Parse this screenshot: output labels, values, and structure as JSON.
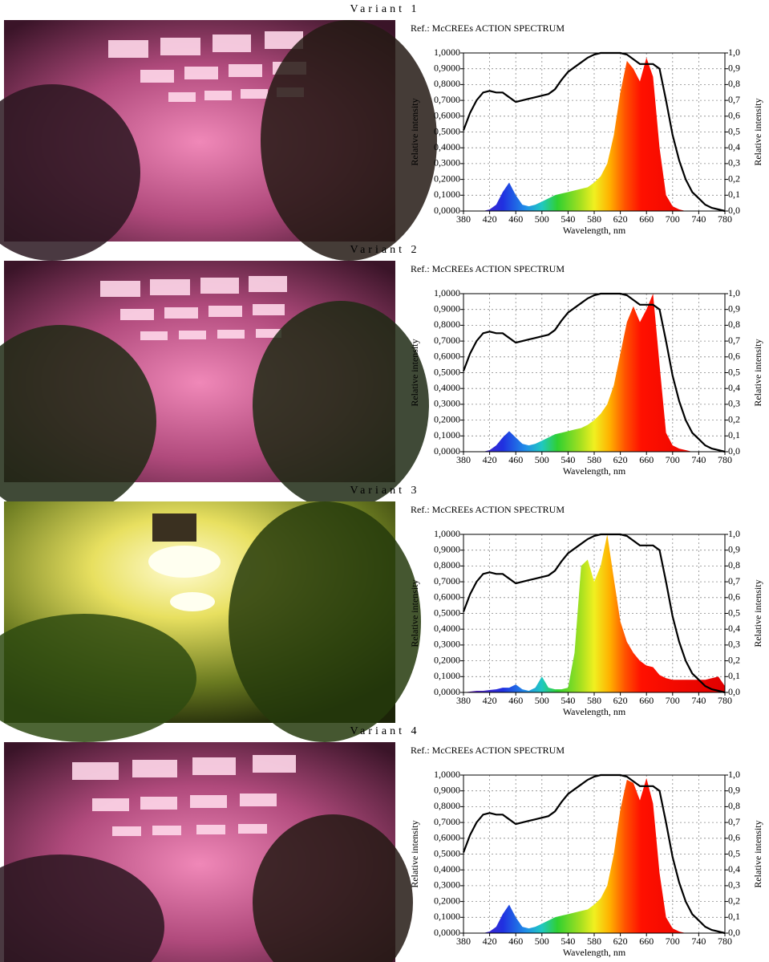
{
  "chart_data": [
    {
      "type": "area",
      "title": "Variant 1",
      "subtitle": "Ref.: McCREEs ACTION SPECTRUM",
      "x_label": "Wavelength, nm",
      "y_label": "Relative intensity",
      "y2_label": "Relative intensity",
      "x": [
        380,
        390,
        400,
        410,
        420,
        430,
        440,
        450,
        460,
        470,
        480,
        490,
        500,
        510,
        520,
        530,
        540,
        550,
        560,
        570,
        580,
        590,
        600,
        610,
        620,
        630,
        640,
        650,
        660,
        670,
        680,
        690,
        700,
        710,
        720,
        730,
        740,
        750,
        760,
        770,
        780
      ],
      "series": [
        {
          "values": [
            0,
            0,
            0,
            0,
            0.01,
            0.04,
            0.12,
            0.18,
            0.1,
            0.04,
            0.03,
            0.04,
            0.06,
            0.08,
            0.1,
            0.11,
            0.12,
            0.13,
            0.14,
            0.15,
            0.18,
            0.22,
            0.3,
            0.48,
            0.75,
            0.95,
            0.9,
            0.82,
            0.97,
            0.85,
            0.4,
            0.1,
            0.03,
            0.01,
            0,
            0,
            0,
            0,
            0,
            0,
            0
          ]
        },
        {
          "color": "#000000",
          "axis": "y2",
          "values": [
            0.51,
            0.62,
            0.7,
            0.75,
            0.76,
            0.75,
            0.75,
            0.72,
            0.69,
            0.7,
            0.71,
            0.72,
            0.73,
            0.74,
            0.77,
            0.83,
            0.88,
            0.91,
            0.94,
            0.97,
            0.99,
            1,
            1,
            1,
            1,
            0.99,
            0.96,
            0.93,
            0.93,
            0.93,
            0.9,
            0.7,
            0.48,
            0.32,
            0.2,
            0.12,
            0.08,
            0.04,
            0.02,
            0.01,
            0
          ]
        }
      ],
      "xlim": [
        380,
        780
      ],
      "xticks": [
        380,
        420,
        460,
        500,
        540,
        580,
        620,
        660,
        700,
        740,
        780
      ],
      "ylim": [
        0,
        1
      ],
      "yticks": [
        {
          "value": 0,
          "label": "0,0000"
        },
        {
          "value": 0.1,
          "label": "0,1000"
        },
        {
          "value": 0.2,
          "label": "0,2000"
        },
        {
          "value": 0.3,
          "label": "0,3000"
        },
        {
          "value": 0.4,
          "label": "0,4000"
        },
        {
          "value": 0.5,
          "label": "0,5000"
        },
        {
          "value": 0.6,
          "label": "0,6000"
        },
        {
          "value": 0.7,
          "label": "0,7000"
        },
        {
          "value": 0.8,
          "label": "0,8000"
        },
        {
          "value": 0.9,
          "label": "0,9000"
        },
        {
          "value": 1,
          "label": "1,0000"
        }
      ],
      "y2lim": [
        0,
        1
      ],
      "y2ticks": [
        {
          "value": 0,
          "label": "0,0"
        },
        {
          "value": 0.1,
          "label": "0,1"
        },
        {
          "value": 0.2,
          "label": "0,2"
        },
        {
          "value": 0.3,
          "label": "0,3"
        },
        {
          "value": 0.4,
          "label": "0,4"
        },
        {
          "value": 0.5,
          "label": "0,5"
        },
        {
          "value": 0.6,
          "label": "0,6"
        },
        {
          "value": 0.7,
          "label": "0,7"
        },
        {
          "value": 0.8,
          "label": "0,8"
        },
        {
          "value": 0.9,
          "label": "0,9"
        },
        {
          "value": 1,
          "label": "1,0"
        }
      ],
      "grid": true
    },
    {
      "type": "area",
      "title": "Variant 2",
      "subtitle": "Ref.: McCREEs ACTION SPECTRUM",
      "x_label": "Wavelength, nm",
      "y_label": "Relative intensity",
      "y2_label": "Relative intensity",
      "x": [
        380,
        390,
        400,
        410,
        420,
        430,
        440,
        450,
        460,
        470,
        480,
        490,
        500,
        510,
        520,
        530,
        540,
        550,
        560,
        570,
        580,
        590,
        600,
        610,
        620,
        630,
        640,
        650,
        660,
        670,
        680,
        690,
        700,
        710,
        720,
        730,
        740,
        750,
        760,
        770,
        780
      ],
      "series": [
        {
          "values": [
            0,
            0,
            0,
            0,
            0.01,
            0.04,
            0.09,
            0.13,
            0.09,
            0.05,
            0.04,
            0.05,
            0.07,
            0.09,
            0.11,
            0.12,
            0.13,
            0.14,
            0.15,
            0.17,
            0.2,
            0.24,
            0.3,
            0.42,
            0.62,
            0.82,
            0.92,
            0.82,
            0.9,
            1,
            0.55,
            0.12,
            0.04,
            0.02,
            0.01,
            0,
            0,
            0,
            0,
            0,
            0
          ]
        },
        {
          "color": "#000000",
          "axis": "y2",
          "values": [
            0.51,
            0.62,
            0.7,
            0.75,
            0.76,
            0.75,
            0.75,
            0.72,
            0.69,
            0.7,
            0.71,
            0.72,
            0.73,
            0.74,
            0.77,
            0.83,
            0.88,
            0.91,
            0.94,
            0.97,
            0.99,
            1,
            1,
            1,
            1,
            0.99,
            0.96,
            0.93,
            0.93,
            0.93,
            0.9,
            0.7,
            0.48,
            0.32,
            0.2,
            0.12,
            0.08,
            0.04,
            0.02,
            0.01,
            0
          ]
        }
      ],
      "xlim": [
        380,
        780
      ],
      "xticks": [
        380,
        420,
        460,
        500,
        540,
        580,
        620,
        660,
        700,
        740,
        780
      ],
      "ylim": [
        0,
        1
      ],
      "yticks": [
        {
          "value": 0,
          "label": "0,0000"
        },
        {
          "value": 0.1,
          "label": "0,1000"
        },
        {
          "value": 0.2,
          "label": "0,2000"
        },
        {
          "value": 0.3,
          "label": "0,3000"
        },
        {
          "value": 0.4,
          "label": "0,4000"
        },
        {
          "value": 0.5,
          "label": "0,5000"
        },
        {
          "value": 0.6,
          "label": "0,6000"
        },
        {
          "value": 0.7,
          "label": "0,7000"
        },
        {
          "value": 0.8,
          "label": "0,8000"
        },
        {
          "value": 0.9,
          "label": "0,9000"
        },
        {
          "value": 1,
          "label": "1,0000"
        }
      ],
      "y2lim": [
        0,
        1
      ],
      "y2ticks": [
        {
          "value": 0,
          "label": "0,0"
        },
        {
          "value": 0.1,
          "label": "0,1"
        },
        {
          "value": 0.2,
          "label": "0,2"
        },
        {
          "value": 0.3,
          "label": "0,3"
        },
        {
          "value": 0.4,
          "label": "0,4"
        },
        {
          "value": 0.5,
          "label": "0,5"
        },
        {
          "value": 0.6,
          "label": "0,6"
        },
        {
          "value": 0.7,
          "label": "0,7"
        },
        {
          "value": 0.8,
          "label": "0,8"
        },
        {
          "value": 0.9,
          "label": "0,9"
        },
        {
          "value": 1,
          "label": "1,0"
        }
      ],
      "grid": true
    },
    {
      "type": "area",
      "title": "Variant 3",
      "subtitle": "Ref.: McCREEs ACTION SPECTRUM",
      "x_label": "Wavelength, nm",
      "y_label": "Relative intensity",
      "y2_label": "Relative intensity",
      "x": [
        380,
        390,
        400,
        410,
        420,
        430,
        440,
        450,
        460,
        470,
        480,
        490,
        500,
        510,
        520,
        530,
        540,
        550,
        560,
        570,
        580,
        590,
        600,
        610,
        620,
        630,
        640,
        650,
        660,
        670,
        680,
        690,
        700,
        710,
        720,
        730,
        740,
        750,
        760,
        770,
        780
      ],
      "series": [
        {
          "values": [
            0,
            0.005,
            0.01,
            0.01,
            0.015,
            0.02,
            0.03,
            0.03,
            0.05,
            0.02,
            0.01,
            0.03,
            0.1,
            0.03,
            0.02,
            0.02,
            0.03,
            0.25,
            0.8,
            0.84,
            0.7,
            0.8,
            1,
            0.72,
            0.45,
            0.32,
            0.25,
            0.2,
            0.17,
            0.16,
            0.11,
            0.09,
            0.08,
            0.08,
            0.08,
            0.08,
            0.08,
            0.08,
            0.09,
            0.1,
            0.04
          ]
        },
        {
          "color": "#000000",
          "axis": "y2",
          "values": [
            0.51,
            0.62,
            0.7,
            0.75,
            0.76,
            0.75,
            0.75,
            0.72,
            0.69,
            0.7,
            0.71,
            0.72,
            0.73,
            0.74,
            0.77,
            0.83,
            0.88,
            0.91,
            0.94,
            0.97,
            0.99,
            1,
            1,
            1,
            1,
            0.99,
            0.96,
            0.93,
            0.93,
            0.93,
            0.9,
            0.7,
            0.48,
            0.32,
            0.2,
            0.12,
            0.08,
            0.04,
            0.02,
            0.01,
            0
          ]
        }
      ],
      "xlim": [
        380,
        780
      ],
      "xticks": [
        380,
        420,
        460,
        500,
        540,
        580,
        620,
        660,
        700,
        740,
        780
      ],
      "ylim": [
        0,
        1
      ],
      "yticks": [
        {
          "value": 0,
          "label": "0,0000"
        },
        {
          "value": 0.1,
          "label": "0,1000"
        },
        {
          "value": 0.2,
          "label": "0,2000"
        },
        {
          "value": 0.3,
          "label": "0,3000"
        },
        {
          "value": 0.4,
          "label": "0,4000"
        },
        {
          "value": 0.5,
          "label": "0,5000"
        },
        {
          "value": 0.6,
          "label": "0,6000"
        },
        {
          "value": 0.7,
          "label": "0,7000"
        },
        {
          "value": 0.8,
          "label": "0,8000"
        },
        {
          "value": 0.9,
          "label": "0,9000"
        },
        {
          "value": 1,
          "label": "1,0000"
        }
      ],
      "y2lim": [
        0,
        1
      ],
      "y2ticks": [
        {
          "value": 0,
          "label": "0,0"
        },
        {
          "value": 0.1,
          "label": "0,1"
        },
        {
          "value": 0.2,
          "label": "0,2"
        },
        {
          "value": 0.3,
          "label": "0,3"
        },
        {
          "value": 0.4,
          "label": "0,4"
        },
        {
          "value": 0.5,
          "label": "0,5"
        },
        {
          "value": 0.6,
          "label": "0,6"
        },
        {
          "value": 0.7,
          "label": "0,7"
        },
        {
          "value": 0.8,
          "label": "0,8"
        },
        {
          "value": 0.9,
          "label": "0,9"
        },
        {
          "value": 1,
          "label": "1,0"
        }
      ],
      "grid": true
    },
    {
      "type": "area",
      "title": "Variant 4",
      "subtitle": "Ref.: McCREEs ACTION SPECTRUM",
      "x_label": "Wavelength, nm",
      "y_label": "Relative intensity",
      "y2_label": "Relative intensity",
      "x": [
        380,
        390,
        400,
        410,
        420,
        430,
        440,
        450,
        460,
        470,
        480,
        490,
        500,
        510,
        520,
        530,
        540,
        550,
        560,
        570,
        580,
        590,
        600,
        610,
        620,
        630,
        640,
        650,
        660,
        670,
        680,
        690,
        700,
        710,
        720,
        730,
        740,
        750,
        760,
        770,
        780
      ],
      "series": [
        {
          "values": [
            0,
            0,
            0,
            0,
            0.01,
            0.04,
            0.12,
            0.18,
            0.1,
            0.04,
            0.03,
            0.04,
            0.06,
            0.08,
            0.1,
            0.11,
            0.12,
            0.13,
            0.14,
            0.15,
            0.18,
            0.22,
            0.3,
            0.5,
            0.78,
            0.97,
            0.95,
            0.84,
            0.98,
            0.82,
            0.38,
            0.1,
            0.03,
            0.01,
            0,
            0,
            0,
            0,
            0,
            0,
            0
          ]
        },
        {
          "color": "#000000",
          "axis": "y2",
          "values": [
            0.51,
            0.62,
            0.7,
            0.75,
            0.76,
            0.75,
            0.75,
            0.72,
            0.69,
            0.7,
            0.71,
            0.72,
            0.73,
            0.74,
            0.77,
            0.83,
            0.88,
            0.91,
            0.94,
            0.97,
            0.99,
            1,
            1,
            1,
            1,
            0.99,
            0.96,
            0.93,
            0.93,
            0.93,
            0.9,
            0.7,
            0.48,
            0.32,
            0.2,
            0.12,
            0.08,
            0.04,
            0.02,
            0.01,
            0
          ]
        }
      ],
      "xlim": [
        380,
        780
      ],
      "xticks": [
        380,
        420,
        460,
        500,
        540,
        580,
        620,
        660,
        700,
        740,
        780
      ],
      "ylim": [
        0,
        1
      ],
      "yticks": [
        {
          "value": 0,
          "label": "0,0000"
        },
        {
          "value": 0.1,
          "label": "0,1000"
        },
        {
          "value": 0.2,
          "label": "0,2000"
        },
        {
          "value": 0.3,
          "label": "0,3000"
        },
        {
          "value": 0.4,
          "label": "0,4000"
        },
        {
          "value": 0.5,
          "label": "0,5000"
        },
        {
          "value": 0.6,
          "label": "0,6000"
        },
        {
          "value": 0.7,
          "label": "0,7000"
        },
        {
          "value": 0.8,
          "label": "0,8000"
        },
        {
          "value": 0.9,
          "label": "0,9000"
        },
        {
          "value": 1,
          "label": "1,0000"
        }
      ],
      "y2lim": [
        0,
        1
      ],
      "y2ticks": [
        {
          "value": 0,
          "label": "0,0"
        },
        {
          "value": 0.1,
          "label": "0,1"
        },
        {
          "value": 0.2,
          "label": "0,2"
        },
        {
          "value": 0.3,
          "label": "0,3"
        },
        {
          "value": 0.4,
          "label": "0,4"
        },
        {
          "value": 0.5,
          "label": "0,5"
        },
        {
          "value": 0.6,
          "label": "0,6"
        },
        {
          "value": 0.7,
          "label": "0,7"
        },
        {
          "value": 0.8,
          "label": "0,8"
        },
        {
          "value": 0.9,
          "label": "0,9"
        },
        {
          "value": 1,
          "label": "1,0"
        }
      ],
      "grid": true
    }
  ]
}
